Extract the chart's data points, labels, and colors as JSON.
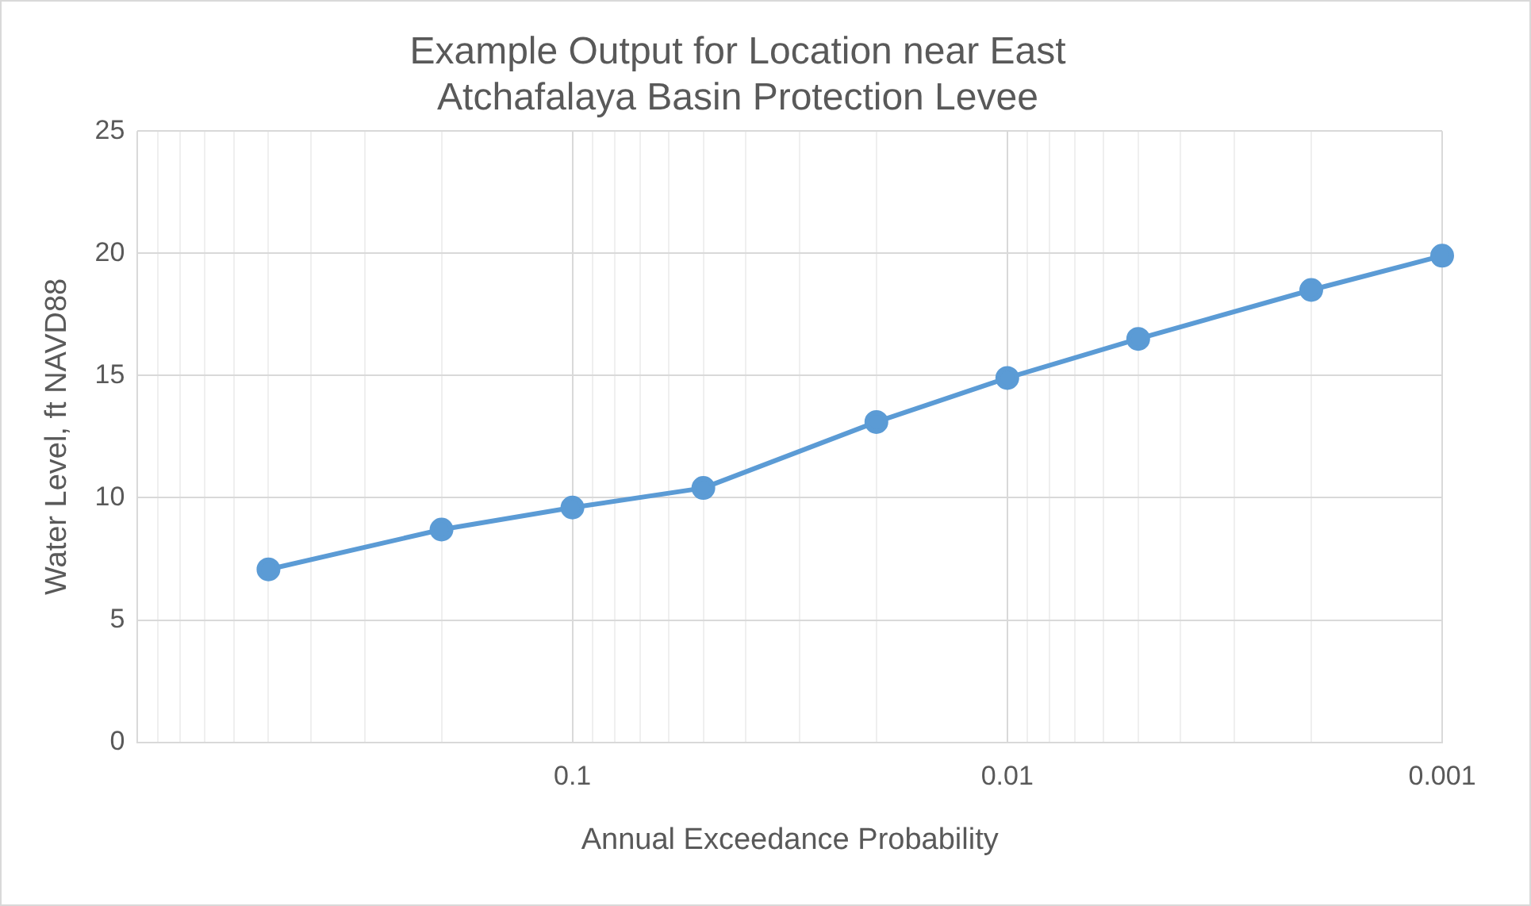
{
  "chart_data": {
    "type": "line",
    "title": [
      "Example Output for Location near East",
      "Atchafalaya Basin Protection Levee"
    ],
    "xlabel": "Annual Exceedance Probability",
    "ylabel": "Water Level, ft NAVD88",
    "x": [
      0.5,
      0.2,
      0.1,
      0.05,
      0.02,
      0.01,
      0.005,
      0.002,
      0.001
    ],
    "series": [
      {
        "color": "#5b9bd5",
        "values": [
          7.07,
          8.7,
          9.6,
          10.4,
          13.1,
          14.9,
          16.5,
          18.5,
          19.9
        ]
      }
    ],
    "log": "x",
    "xlim": [
      1,
      0.001
    ],
    "xticks": [
      {
        "value": 1,
        "label": null
      },
      0.1,
      0.01,
      0.001
    ],
    "ylim": [
      0,
      25
    ],
    "yticks": [
      0,
      5,
      10,
      15,
      20,
      25
    ],
    "grid": true,
    "marker": "circle",
    "line_style": "solid",
    "legend": false
  }
}
